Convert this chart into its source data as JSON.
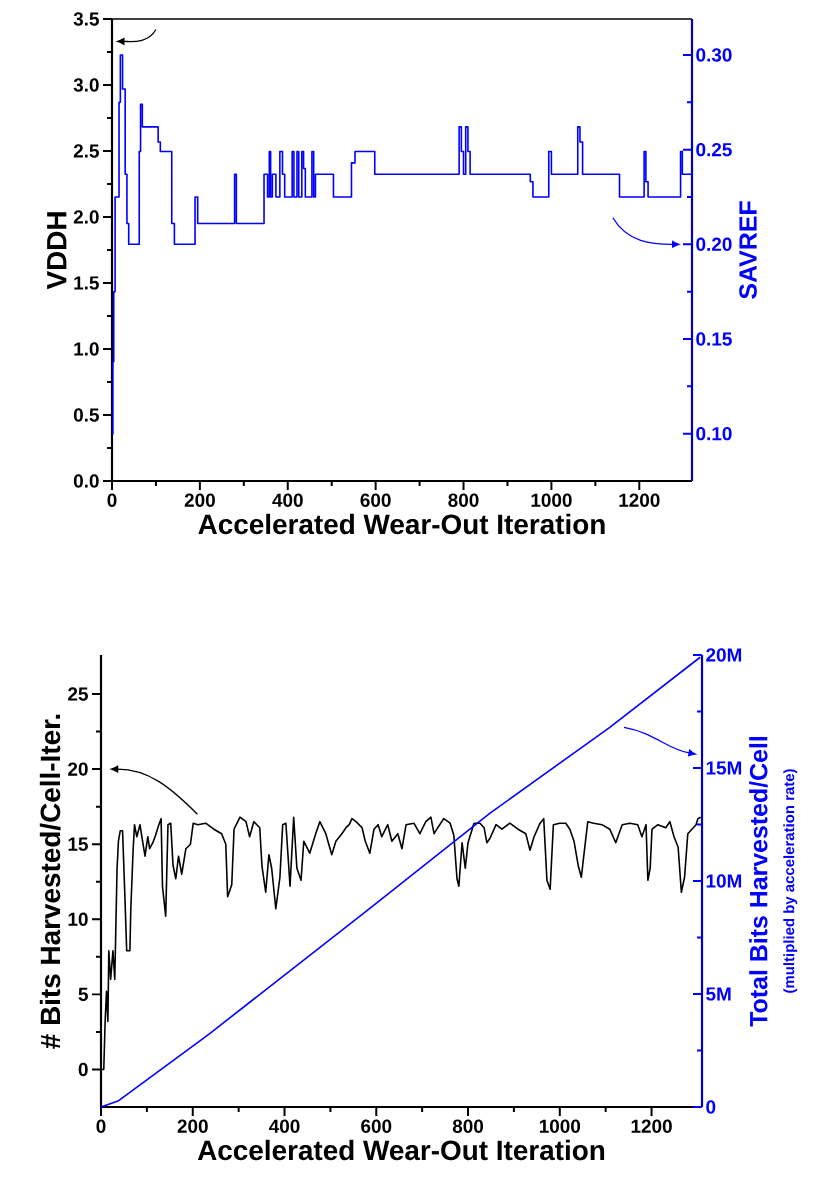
{
  "chart_data": [
    {
      "type": "line",
      "xlabel": "Accelerated Wear-Out Iteration",
      "ylabel": "VDDH",
      "y2label": "SAVREF",
      "xlim": [
        0,
        1320
      ],
      "xticks": [
        0,
        200,
        400,
        600,
        800,
        1000,
        1200
      ],
      "ylim": [
        0,
        3.5
      ],
      "yticks": [
        {
          "value": 0,
          "label": "0.0"
        },
        {
          "value": 0.5,
          "label": "0.5"
        },
        {
          "value": 1,
          "label": "1.0"
        },
        {
          "value": 1.5,
          "label": "1.5"
        },
        {
          "value": 2,
          "label": "2.0"
        },
        {
          "value": 2.5,
          "label": "2.5"
        },
        {
          "value": 3,
          "label": "3.0"
        },
        {
          "value": 3.5,
          "label": "3.5"
        }
      ],
      "y2lim": [
        0.075,
        0.319
      ],
      "y2ticks": [
        {
          "value": 0.1,
          "label": "0.10"
        },
        {
          "value": 0.15,
          "label": "0.15"
        },
        {
          "value": 0.2,
          "label": "0.20"
        },
        {
          "value": 0.25,
          "label": "0.25"
        },
        {
          "value": 0.3,
          "label": "0.30"
        }
      ],
      "series": [
        {
          "color": "#000000",
          "x": [
            0,
            1320
          ],
          "values": [
            3.5,
            3.5
          ]
        },
        {
          "type": "step",
          "axis": "y2",
          "color": "#0000ff",
          "x": [
            0,
            2,
            4,
            7,
            16,
            19,
            24,
            30,
            34,
            38,
            62,
            65,
            69,
            105,
            110,
            136,
            142,
            189,
            195,
            279,
            283,
            346,
            354,
            358,
            361,
            365,
            373,
            382,
            388,
            393,
            410,
            414,
            421,
            425,
            432,
            436,
            440,
            455,
            459,
            463,
            504,
            545,
            553,
            598,
            790,
            795,
            800,
            805,
            810,
            815,
            952,
            958,
            994,
            1000,
            1060,
            1065,
            1071,
            1155,
            1211,
            1215,
            1220,
            1294,
            1298,
            1320
          ],
          "values": [
            0.1,
            0.138,
            0.175,
            0.225,
            0.275,
            0.3,
            0.282,
            0.237,
            0.211,
            0.2,
            0.249,
            0.274,
            0.262,
            0.254,
            0.249,
            0.211,
            0.2,
            0.225,
            0.211,
            0.237,
            0.211,
            0.237,
            0.225,
            0.249,
            0.225,
            0.237,
            0.225,
            0.249,
            0.237,
            0.225,
            0.249,
            0.225,
            0.249,
            0.225,
            0.249,
            0.24,
            0.225,
            0.249,
            0.225,
            0.237,
            0.225,
            0.243,
            0.249,
            0.237,
            0.262,
            0.249,
            0.237,
            0.262,
            0.249,
            0.237,
            0.233,
            0.225,
            0.249,
            0.237,
            0.262,
            0.254,
            0.237,
            0.225,
            0.249,
            0.233,
            0.225,
            0.249,
            0.237,
            0.237
          ]
        }
      ]
    },
    {
      "type": "line",
      "xlabel": "Accelerated Wear-Out Iteration",
      "ylabel": "# Bits Harvested/Cell-Iter.",
      "y2label": "Total Bits Harvested/Cell",
      "annotations": [
        "(multiplied by acceleration rate)"
      ],
      "xlim": [
        0,
        1310
      ],
      "xticks": [
        0,
        200,
        400,
        600,
        800,
        1000,
        1200
      ],
      "ylim": [
        -2.5,
        27.6
      ],
      "yticks": [
        0,
        5,
        10,
        15,
        20,
        25
      ],
      "y2lim": [
        0,
        20000000
      ],
      "y2ticks": [
        0,
        {
          "value": 5000000,
          "label": "5M"
        },
        {
          "value": 10000000,
          "label": "10M"
        },
        {
          "value": 15000000,
          "label": "15M"
        },
        {
          "value": 20000000,
          "label": "20M"
        }
      ],
      "series": [
        {
          "color": "#000000",
          "x": [
            2,
            6,
            9,
            12,
            15,
            17,
            21,
            26,
            30,
            32,
            35,
            38,
            42,
            47,
            52,
            56,
            63,
            65,
            70,
            73,
            78,
            85,
            89,
            96,
            102,
            106,
            113,
            119,
            126,
            131,
            134,
            141,
            146,
            152,
            157,
            163,
            169,
            176,
            185,
            195,
            201,
            211,
            228,
            246,
            263,
            272,
            276,
            285,
            290,
            303,
            316,
            324,
            333,
            346,
            351,
            359,
            366,
            372,
            381,
            390,
            396,
            403,
            412,
            420,
            427,
            436,
            442,
            455,
            468,
            477,
            490,
            503,
            512,
            525,
            534,
            541,
            547,
            556,
            569,
            576,
            586,
            595,
            604,
            612,
            625,
            634,
            647,
            656,
            665,
            682,
            695,
            708,
            719,
            726,
            734,
            747,
            761,
            769,
            776,
            780,
            787,
            794,
            800,
            813,
            826,
            835,
            841,
            848,
            861,
            874,
            891,
            909,
            926,
            935,
            944,
            957,
            965,
            972,
            979,
            986,
            1000,
            1013,
            1022,
            1031,
            1040,
            1047,
            1053,
            1061,
            1074,
            1092,
            1109,
            1122,
            1136,
            1153,
            1170,
            1179,
            1188,
            1192,
            1197,
            1201,
            1214,
            1231,
            1240,
            1249,
            1258,
            1265,
            1272,
            1279,
            1288,
            1297,
            1301,
            1307
          ],
          "values": [
            0,
            0,
            3.2,
            5.2,
            3.2,
            7.9,
            6.0,
            7.9,
            6.0,
            8.9,
            13.4,
            15.2,
            15.9,
            15.9,
            11.6,
            7.9,
            7.9,
            10.7,
            14.6,
            16.3,
            15.5,
            16.3,
            15.5,
            14.2,
            15.5,
            14.7,
            15.1,
            15.6,
            16.3,
            16.7,
            12.2,
            10.2,
            16.3,
            16.4,
            13.6,
            12.7,
            14.2,
            13.0,
            14.7,
            15.0,
            16.4,
            16.3,
            16.4,
            16.0,
            15.7,
            15.0,
            11.5,
            12.3,
            16.0,
            16.8,
            16.5,
            15.5,
            16.5,
            16.1,
            13.5,
            11.8,
            14.3,
            13.4,
            10.7,
            12.8,
            16.3,
            16.4,
            12.2,
            16.8,
            13.4,
            12.6,
            15.2,
            14.4,
            15.7,
            16.5,
            15.7,
            14.3,
            15.2,
            15.7,
            16.1,
            16.3,
            16.7,
            16.5,
            16.1,
            15.2,
            14.4,
            16.0,
            16.3,
            15.5,
            16.3,
            15.2,
            15.7,
            14.7,
            16.3,
            16.4,
            15.7,
            16.5,
            16.8,
            15.7,
            16.1,
            16.7,
            16.4,
            15.6,
            12.7,
            12.2,
            15.1,
            13.4,
            15.1,
            16.4,
            16.4,
            16.1,
            15.1,
            15.4,
            16.3,
            16.0,
            16.4,
            16.0,
            15.7,
            14.6,
            15.5,
            16.4,
            16.7,
            12.6,
            12.0,
            16.3,
            16.4,
            16.4,
            16.0,
            15.2,
            13.6,
            12.8,
            14.4,
            16.5,
            16.4,
            16.3,
            16.0,
            15.1,
            16.3,
            16.4,
            16.3,
            15.5,
            16.3,
            12.6,
            13.4,
            16.0,
            16.3,
            16.1,
            16.5,
            15.5,
            14.8,
            11.8,
            12.8,
            15.7,
            16.0,
            16.3,
            16.7,
            16.8
          ]
        },
        {
          "axis": "y2",
          "color": "#0000ff",
          "x": [
            0,
            37,
            237,
            586,
            848,
            1109,
            1306
          ],
          "values": [
            0,
            260000,
            3250000,
            8790000,
            13000000,
            16800000,
            19900000
          ]
        }
      ]
    }
  ]
}
